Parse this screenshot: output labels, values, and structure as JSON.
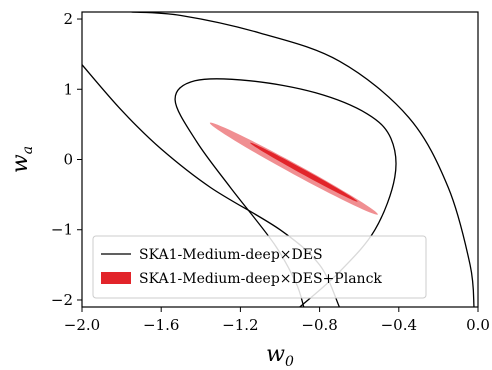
{
  "chart_data": {
    "type": "line",
    "title": "",
    "xlabel": {
      "base": "w",
      "sub": "0"
    },
    "ylabel": {
      "base": "w",
      "sub": "a"
    },
    "xlim": [
      -2.0,
      0.0
    ],
    "ylim": [
      -2.1,
      2.1
    ],
    "xticks": [
      -2.0,
      -1.6,
      -1.2,
      -0.8,
      -0.4,
      0.0
    ],
    "xtick_labels": [
      "−2.0",
      "−1.6",
      "−1.2",
      "−0.8",
      "−0.4",
      "0.0"
    ],
    "yticks": [
      -2,
      -1,
      0,
      1,
      2
    ],
    "ytick_labels": [
      "−2",
      "−1",
      "0",
      "1",
      "2"
    ],
    "grid": false,
    "legend_position": "lower-left",
    "series": [
      {
        "name": "SKA1-Medium-deep×DES",
        "style": "contour-lines",
        "color": "#000000",
        "contours": [
          {
            "level": "1-sigma",
            "points": [
              [
                -0.9,
                -2.1
              ],
              [
                -0.7,
                -1.6
              ],
              [
                -0.52,
                -1.0
              ],
              [
                -0.42,
                -0.25
              ],
              [
                -0.44,
                0.3
              ],
              [
                -0.56,
                0.65
              ],
              [
                -0.82,
                0.95
              ],
              [
                -1.15,
                1.12
              ],
              [
                -1.43,
                1.12
              ],
              [
                -1.53,
                0.85
              ],
              [
                -1.42,
                0.25
              ],
              [
                -1.25,
                -0.4
              ],
              [
                -1.03,
                -1.2
              ],
              [
                -0.92,
                -1.75
              ],
              [
                -0.88,
                -2.1
              ]
            ]
          },
          {
            "level": "2-sigma-upper",
            "points": [
              [
                -1.75,
                2.1
              ],
              [
                -1.5,
                2.05
              ],
              [
                -1.1,
                1.8
              ],
              [
                -0.7,
                1.4
              ],
              [
                -0.35,
                0.6
              ],
              [
                -0.15,
                -0.4
              ],
              [
                -0.04,
                -1.5
              ],
              [
                -0.02,
                -2.1
              ]
            ]
          },
          {
            "level": "2-sigma-lower",
            "points": [
              [
                -2.0,
                1.35
              ],
              [
                -1.8,
                0.7
              ],
              [
                -1.6,
                0.15
              ],
              [
                -1.35,
                -0.4
              ],
              [
                -1.0,
                -1.0
              ],
              [
                -0.8,
                -1.5
              ],
              [
                -0.7,
                -2.1
              ]
            ]
          }
        ]
      },
      {
        "name": "SKA1-Medium-deep×DES+Planck",
        "style": "filled-contour",
        "colors": {
          "outer": "#f08f92",
          "inner": "#e2242a"
        },
        "contours": [
          {
            "level": "2-sigma",
            "center": [
              -0.93,
              -0.13
            ],
            "semi_major": 0.78,
            "semi_minor": 0.045,
            "axis_slope": -1.55
          },
          {
            "level": "1-sigma",
            "center": [
              -0.88,
              -0.18
            ],
            "semi_major": 0.5,
            "semi_minor": 0.022,
            "axis_slope": -1.55
          }
        ]
      }
    ]
  },
  "colors": {
    "axis": "#000000",
    "line": "#000000",
    "fill_outer": "#f08f92",
    "fill_inner": "#e2242a"
  }
}
